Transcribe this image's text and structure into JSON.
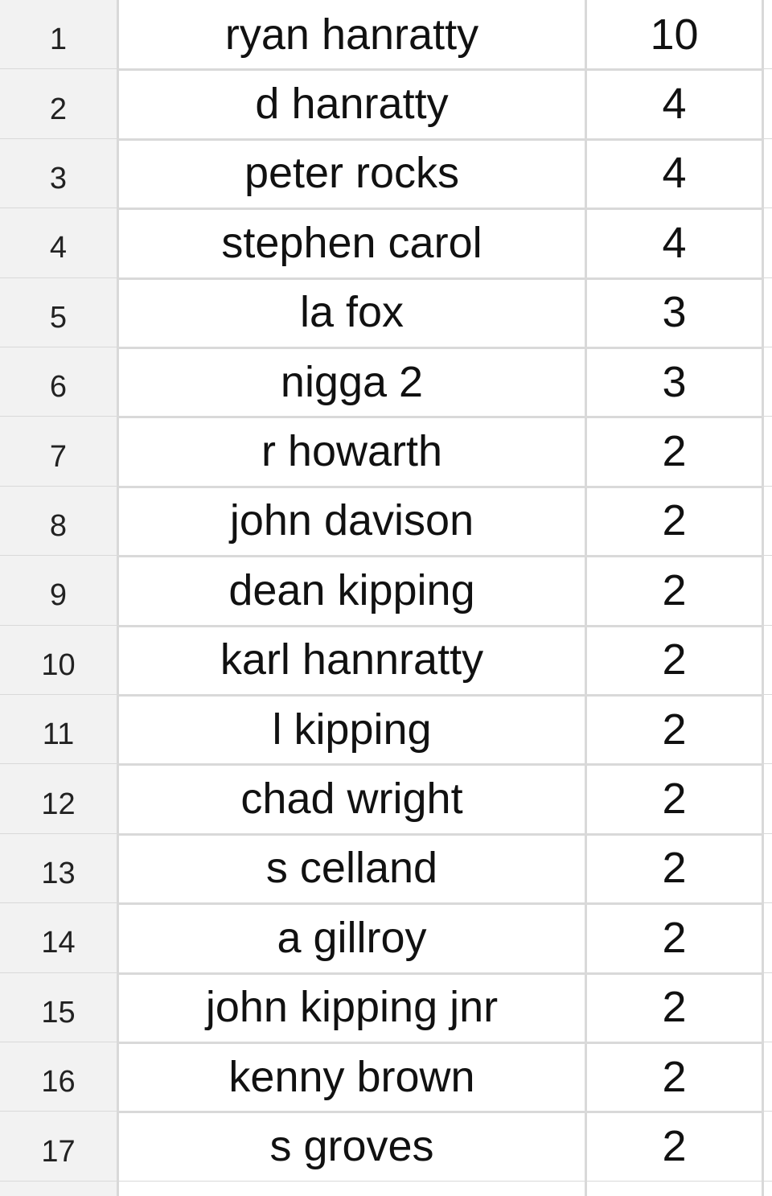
{
  "table": {
    "rows": [
      [
        1,
        "ryan hanratty",
        10
      ],
      [
        2,
        "d hanratty",
        4
      ],
      [
        3,
        "peter rocks",
        4
      ],
      [
        4,
        "stephen carol",
        4
      ],
      [
        5,
        "la fox",
        3
      ],
      [
        6,
        "nigga 2",
        3
      ],
      [
        7,
        "r howarth",
        2
      ],
      [
        8,
        "john davison",
        2
      ],
      [
        9,
        "dean kipping",
        2
      ],
      [
        10,
        "karl hannratty",
        2
      ],
      [
        11,
        "l kipping",
        2
      ],
      [
        12,
        "chad wright",
        2
      ],
      [
        13,
        "s celland",
        2
      ],
      [
        14,
        "a gillroy",
        2
      ],
      [
        15,
        "john kipping jnr",
        2
      ],
      [
        16,
        "kenny brown",
        2
      ],
      [
        17,
        "s groves",
        2
      ]
    ]
  }
}
